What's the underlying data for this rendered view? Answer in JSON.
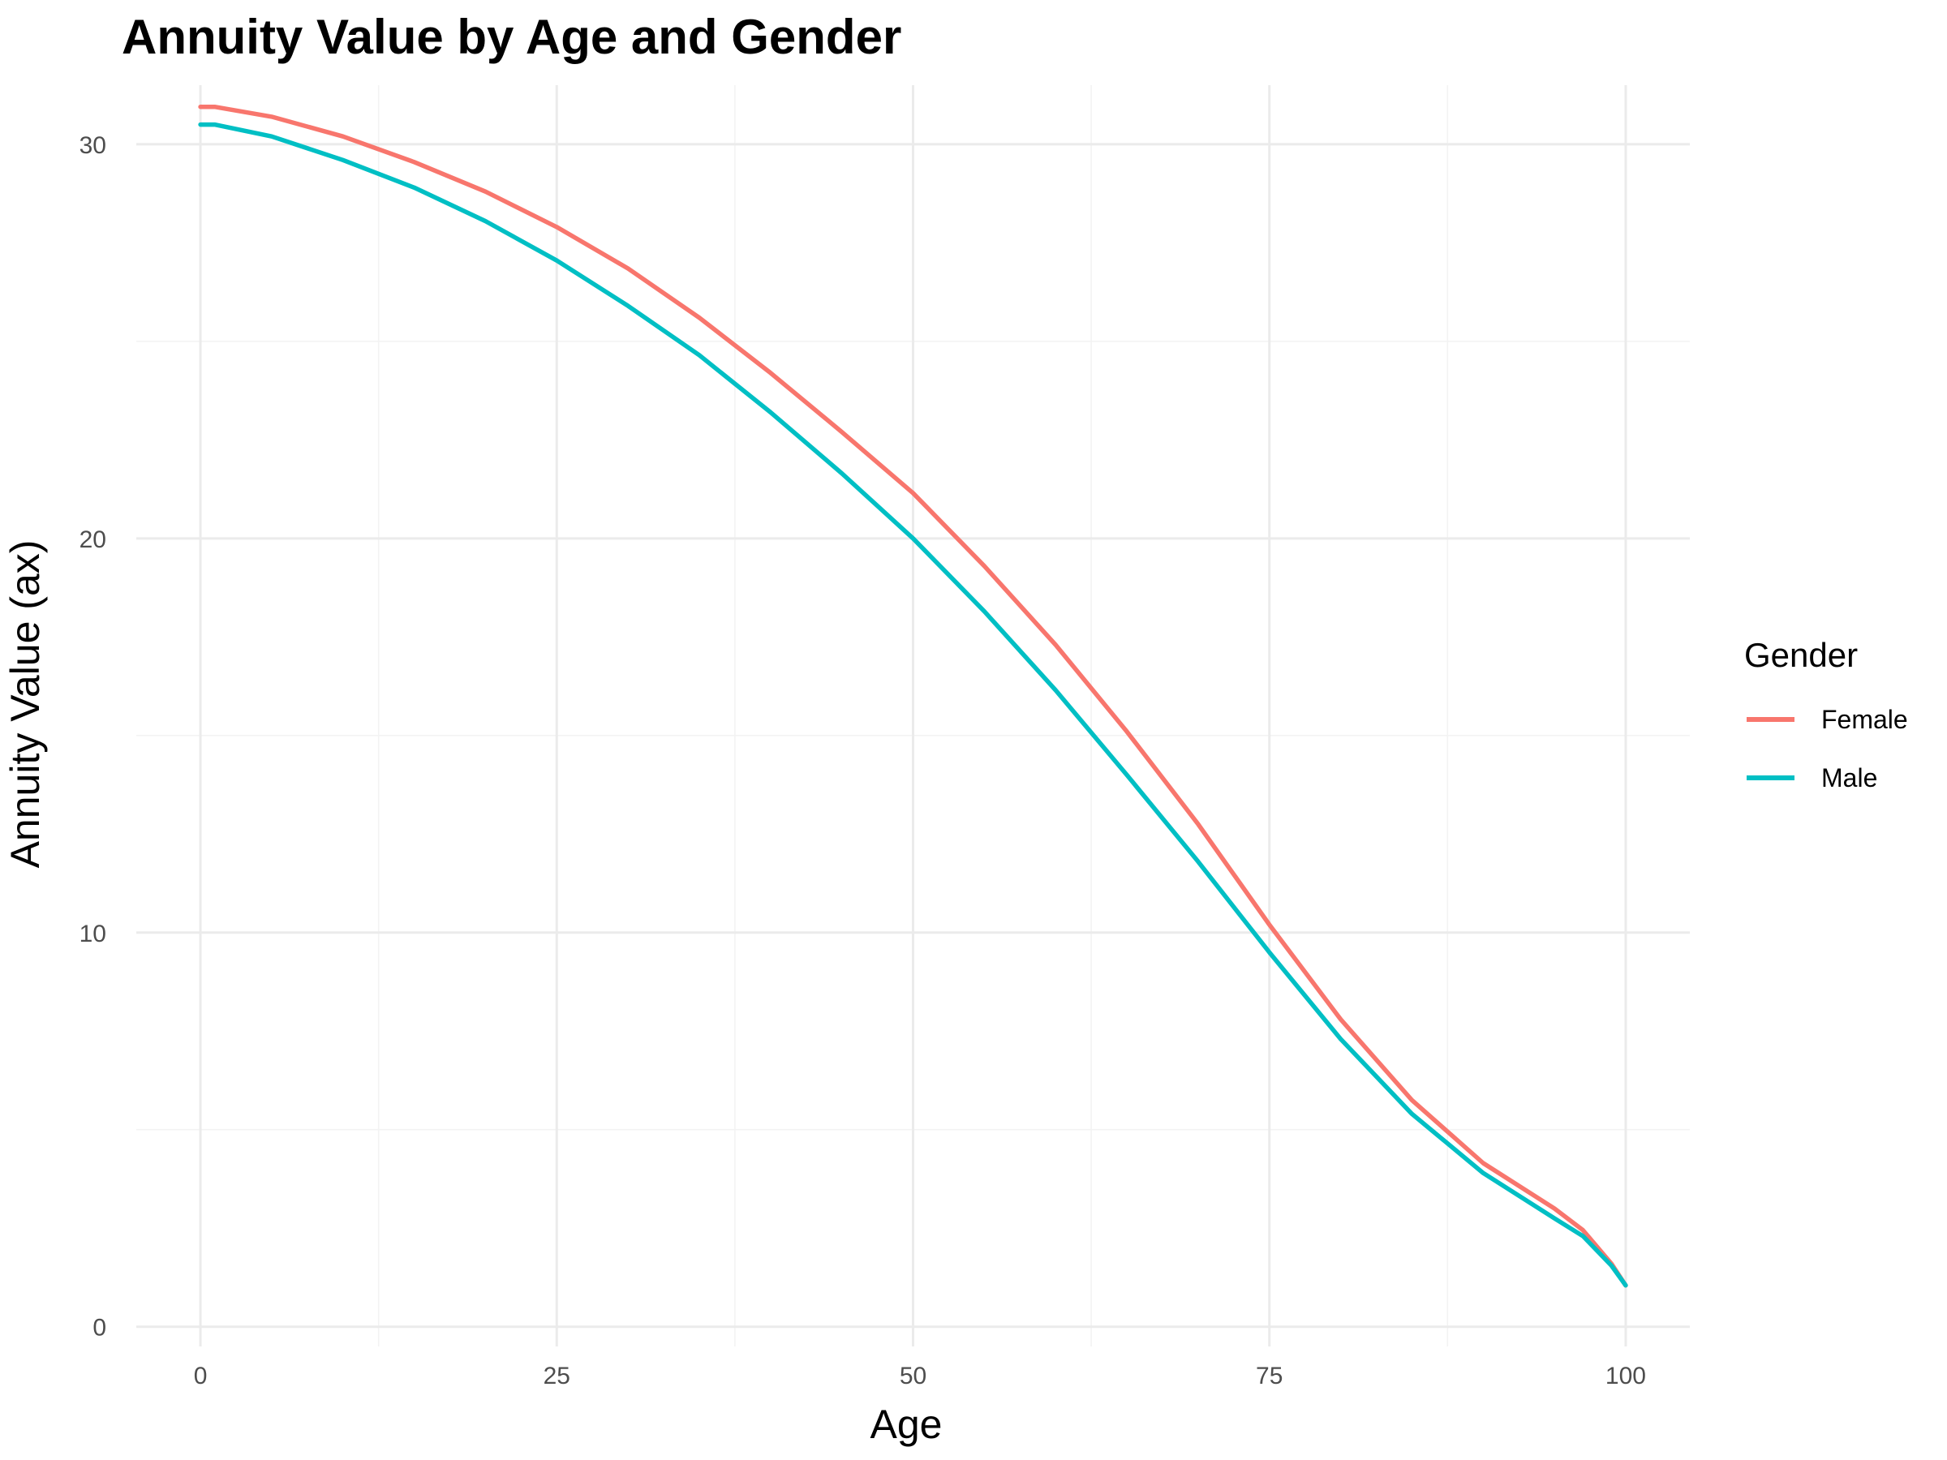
{
  "colors": {
    "female": "#F8766D",
    "male": "#00BFC4"
  },
  "chart_data": {
    "type": "line",
    "title": "Annuity Value by Age and Gender",
    "xlabel": "Age",
    "ylabel": "Annuity Value (ax)",
    "xlim": [
      -4.5,
      104.5
    ],
    "ylim": [
      -0.5,
      31.5
    ],
    "xticks": [
      0,
      25,
      50,
      75,
      100
    ],
    "yticks": [
      0,
      10,
      20,
      30
    ],
    "grid": true,
    "legend": {
      "title": "Gender",
      "position": "right"
    },
    "x": [
      0,
      1,
      5,
      10,
      15,
      20,
      25,
      30,
      35,
      40,
      45,
      50,
      55,
      60,
      65,
      70,
      75,
      80,
      85,
      90,
      95,
      97,
      99,
      100
    ],
    "series": [
      {
        "name": "Female",
        "color": "#F8766D",
        "values": [
          30.95,
          30.95,
          30.7,
          30.2,
          29.55,
          28.8,
          27.9,
          26.85,
          25.6,
          24.2,
          22.7,
          21.15,
          19.3,
          17.3,
          15.1,
          12.75,
          10.2,
          7.8,
          5.75,
          4.15,
          3.0,
          2.45,
          1.6,
          1.05
        ]
      },
      {
        "name": "Male",
        "color": "#00BFC4",
        "values": [
          30.5,
          30.5,
          30.2,
          29.6,
          28.9,
          28.05,
          27.05,
          25.9,
          24.65,
          23.2,
          21.65,
          20.0,
          18.15,
          16.15,
          14.0,
          11.8,
          9.5,
          7.3,
          5.4,
          3.9,
          2.75,
          2.3,
          1.55,
          1.05
        ]
      }
    ]
  }
}
